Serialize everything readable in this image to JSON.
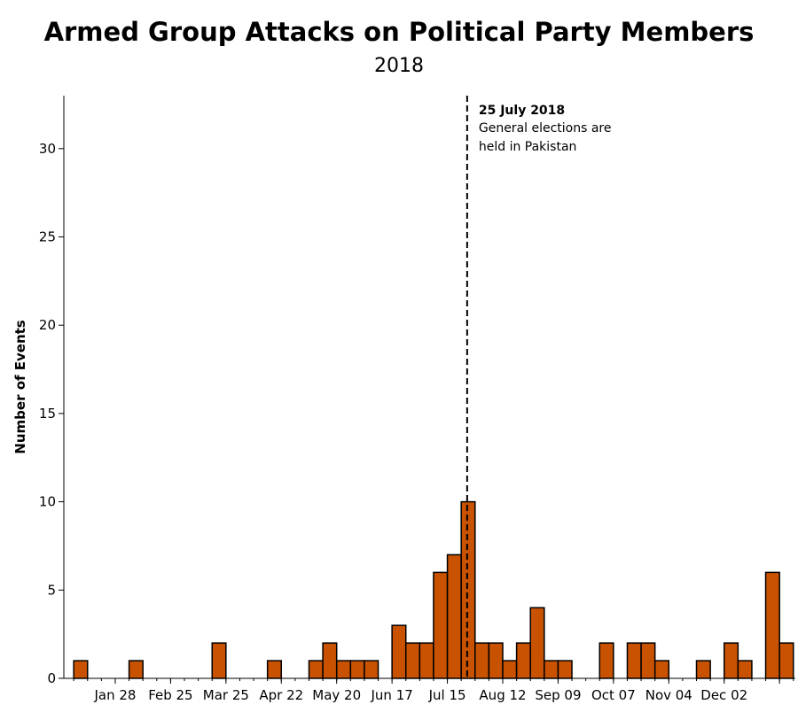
{
  "chart_data": {
    "type": "bar",
    "title": "Armed Group Attacks on Political Party Members",
    "subtitle": "2018",
    "xlabel": "",
    "ylabel": "Number of Events",
    "ylim": [
      0,
      33
    ],
    "xlim": [
      "2018-01-02",
      "2019-01-07"
    ],
    "yticks": [
      0,
      5,
      10,
      15,
      20,
      25,
      30
    ],
    "xticks": [
      {
        "date": "2018-01-28",
        "label": "Jan 28"
      },
      {
        "date": "2018-02-25",
        "label": "Feb 25"
      },
      {
        "date": "2018-03-25",
        "label": "Mar 25"
      },
      {
        "date": "2018-04-22",
        "label": "Apr 22"
      },
      {
        "date": "2018-05-20",
        "label": "May 20"
      },
      {
        "date": "2018-06-17",
        "label": "Jun 17"
      },
      {
        "date": "2018-07-15",
        "label": "Jul 15"
      },
      {
        "date": "2018-08-12",
        "label": "Aug 12"
      },
      {
        "date": "2018-09-09",
        "label": "Sep 09"
      },
      {
        "date": "2018-10-07",
        "label": "Oct 07"
      },
      {
        "date": "2018-11-04",
        "label": "Nov 04"
      },
      {
        "date": "2018-12-02",
        "label": "Dec 02"
      },
      {
        "date": "2018-12-30",
        "label": ""
      }
    ],
    "bin": "week",
    "bars": [
      {
        "week_start": "2018-01-07",
        "value": 1
      },
      {
        "week_start": "2018-02-04",
        "value": 1
      },
      {
        "week_start": "2018-03-18",
        "value": 2
      },
      {
        "week_start": "2018-04-15",
        "value": 1
      },
      {
        "week_start": "2018-05-06",
        "value": 1
      },
      {
        "week_start": "2018-05-13",
        "value": 2
      },
      {
        "week_start": "2018-05-20",
        "value": 1
      },
      {
        "week_start": "2018-05-27",
        "value": 1
      },
      {
        "week_start": "2018-06-03",
        "value": 1
      },
      {
        "week_start": "2018-06-17",
        "value": 3
      },
      {
        "week_start": "2018-06-24",
        "value": 2
      },
      {
        "week_start": "2018-07-01",
        "value": 2
      },
      {
        "week_start": "2018-07-08",
        "value": 6
      },
      {
        "week_start": "2018-07-15",
        "value": 7
      },
      {
        "week_start": "2018-07-22",
        "value": 10
      },
      {
        "week_start": "2018-07-29",
        "value": 2
      },
      {
        "week_start": "2018-08-05",
        "value": 2
      },
      {
        "week_start": "2018-08-12",
        "value": 1
      },
      {
        "week_start": "2018-08-19",
        "value": 2
      },
      {
        "week_start": "2018-08-26",
        "value": 4
      },
      {
        "week_start": "2018-09-02",
        "value": 1
      },
      {
        "week_start": "2018-09-09",
        "value": 1
      },
      {
        "week_start": "2018-09-30",
        "value": 2
      },
      {
        "week_start": "2018-10-14",
        "value": 2
      },
      {
        "week_start": "2018-10-21",
        "value": 2
      },
      {
        "week_start": "2018-10-28",
        "value": 1
      },
      {
        "week_start": "2018-11-18",
        "value": 1
      },
      {
        "week_start": "2018-12-02",
        "value": 2
      },
      {
        "week_start": "2018-12-09",
        "value": 1
      },
      {
        "week_start": "2018-12-23",
        "value": 6
      },
      {
        "week_start": "2018-12-30",
        "value": 2
      }
    ],
    "bar_color": "#c85200",
    "grid": false,
    "annotation": {
      "date": "2018-07-25",
      "title": "25 July 2018",
      "lines": [
        "General elections are",
        "held in Pakistan"
      ]
    }
  }
}
